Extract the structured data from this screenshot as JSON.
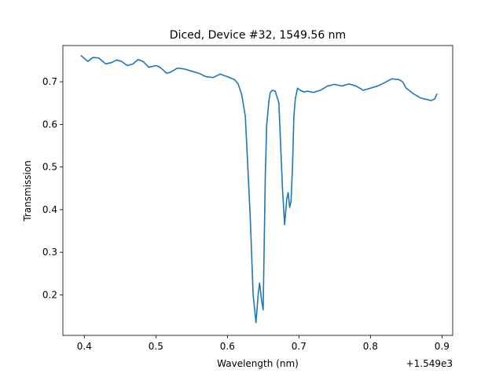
{
  "chart_data": {
    "type": "line",
    "title": "Diced, Device #32, 1549.56 nm",
    "xlabel": "Wavelength (nm)",
    "ylabel": "Transmission",
    "x_offset_label": "+1.549e3",
    "xlim": [
      0.37,
      0.915
    ],
    "ylim": [
      0.105,
      0.785
    ],
    "x_ticks": [
      0.4,
      0.5,
      0.6,
      0.7,
      0.8,
      0.9
    ],
    "x_tick_labels": [
      "0.4",
      "0.5",
      "0.6",
      "0.7",
      "0.8",
      "0.9"
    ],
    "y_ticks": [
      0.2,
      0.3,
      0.4,
      0.5,
      0.6,
      0.7
    ],
    "y_tick_labels": [
      "0.2",
      "0.3",
      "0.4",
      "0.5",
      "0.6",
      "0.7"
    ],
    "grid": false,
    "line_color": "#1f77b4",
    "series": [
      {
        "x": [
          0.395,
          0.405,
          0.412,
          0.42,
          0.43,
          0.438,
          0.445,
          0.452,
          0.46,
          0.468,
          0.475,
          0.482,
          0.49,
          0.5,
          0.505,
          0.51,
          0.515,
          0.52,
          0.53,
          0.54,
          0.55,
          0.56,
          0.57,
          0.58,
          0.59,
          0.6,
          0.61,
          0.615,
          0.62,
          0.625,
          0.628,
          0.632,
          0.636,
          0.64,
          0.643,
          0.645,
          0.648,
          0.65,
          0.653,
          0.655,
          0.658,
          0.66,
          0.663,
          0.667,
          0.672,
          0.677,
          0.68,
          0.683,
          0.685,
          0.687,
          0.689,
          0.691,
          0.693,
          0.695,
          0.698,
          0.702,
          0.707,
          0.712,
          0.72,
          0.73,
          0.74,
          0.75,
          0.76,
          0.77,
          0.78,
          0.79,
          0.8,
          0.81,
          0.82,
          0.83,
          0.84,
          0.845,
          0.85,
          0.86,
          0.87,
          0.88,
          0.885,
          0.89,
          0.893
        ],
        "y": [
          0.762,
          0.748,
          0.757,
          0.756,
          0.742,
          0.745,
          0.751,
          0.748,
          0.738,
          0.742,
          0.752,
          0.748,
          0.734,
          0.738,
          0.735,
          0.728,
          0.72,
          0.722,
          0.732,
          0.73,
          0.725,
          0.72,
          0.712,
          0.71,
          0.718,
          0.712,
          0.705,
          0.695,
          0.67,
          0.62,
          0.52,
          0.38,
          0.2,
          0.135,
          0.2,
          0.228,
          0.185,
          0.165,
          0.48,
          0.6,
          0.655,
          0.675,
          0.68,
          0.678,
          0.65,
          0.45,
          0.365,
          0.425,
          0.44,
          0.405,
          0.42,
          0.5,
          0.62,
          0.66,
          0.685,
          0.68,
          0.676,
          0.678,
          0.675,
          0.68,
          0.69,
          0.694,
          0.69,
          0.695,
          0.69,
          0.68,
          0.685,
          0.69,
          0.698,
          0.707,
          0.705,
          0.7,
          0.685,
          0.672,
          0.662,
          0.658,
          0.656,
          0.66,
          0.672
        ]
      }
    ]
  }
}
